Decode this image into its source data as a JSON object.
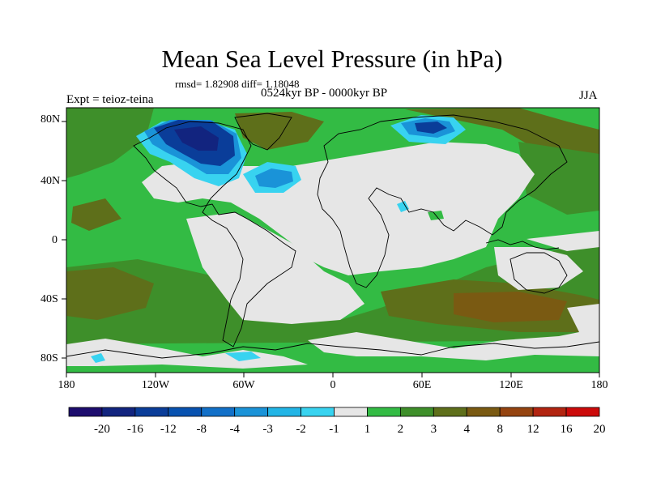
{
  "title": "Mean Sea Level Pressure (in hPa)",
  "stats_line": "rmsd= 1.82908 diff= 1.18048",
  "period": "0524kyr BP - 0000kyr BP",
  "experiment": "Expt = teioz-teina",
  "season": "JJA",
  "lat_labels": [
    "80N",
    "40N",
    "0",
    "40S",
    "80S"
  ],
  "lon_labels": [
    "180",
    "120W",
    "60W",
    "0",
    "60E",
    "120E",
    "180"
  ],
  "colorbar": {
    "labels": [
      "-20",
      "-16",
      "-12",
      "-8",
      "-4",
      "-3",
      "-2",
      "-1",
      "1",
      "2",
      "3",
      "4",
      "8",
      "12",
      "16",
      "20"
    ],
    "colors": [
      "#1d0c6e",
      "#12247f",
      "#0a3d99",
      "#0852b0",
      "#1270c8",
      "#1a93d8",
      "#22b5e6",
      "#38d3f0",
      "#e6e6e6",
      "#33bb44",
      "#3e8f2a",
      "#5e6f1a",
      "#7a5a12",
      "#954410",
      "#b22410",
      "#cc0a0a"
    ]
  },
  "map_colors": {
    "neutral": "#e6e6e6",
    "light_green": "#33bb44",
    "mid_green": "#3e8f2a",
    "olive": "#5e6f1a",
    "brown": "#7a5a12",
    "cyan": "#38d3f0",
    "light_blue": "#1a93d8",
    "blue": "#0a3d99",
    "dark_blue": "#12247f"
  }
}
